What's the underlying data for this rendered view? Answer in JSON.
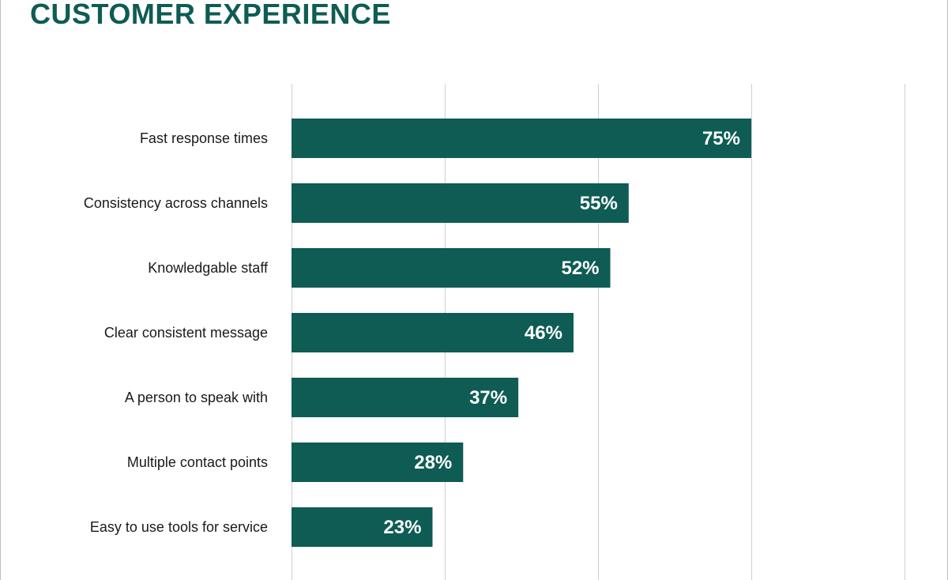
{
  "header": {
    "title": "CUSTOMER EXPERIENCE"
  },
  "colors": {
    "bar": "#0e5c53",
    "title": "#0e5c53",
    "value_label": "#ffffff",
    "grid": "#cfcfcf"
  },
  "chart_data": {
    "type": "bar",
    "orientation": "horizontal",
    "categories": [
      "Fast response times",
      "Consistency across channels",
      "Knowledgable staff",
      "Clear consistent message",
      "A person to speak with",
      "Multiple contact points",
      "Easy to use tools for service"
    ],
    "values": [
      75,
      55,
      52,
      46,
      37,
      28,
      23
    ],
    "value_labels": [
      "75%",
      "55%",
      "52%",
      "46%",
      "37%",
      "28%",
      "23%"
    ],
    "xlim": [
      0,
      100
    ],
    "grid_step": 25,
    "grid": true,
    "title": "CUSTOMER EXPERIENCE",
    "xlabel": "",
    "ylabel": ""
  }
}
